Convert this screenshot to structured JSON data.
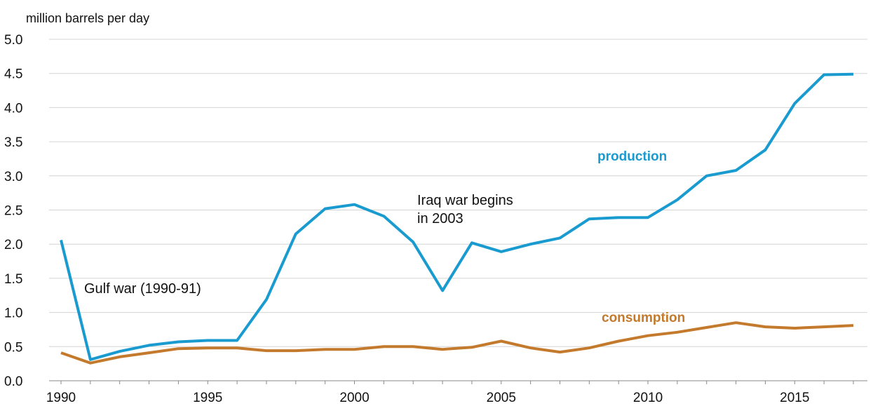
{
  "chart_data": {
    "type": "line",
    "ylabel": "million barrels per day",
    "xlim": [
      1990,
      2017
    ],
    "ylim": [
      0,
      5
    ],
    "grid": true,
    "y_ticks": [
      "0.0",
      "0.5",
      "1.0",
      "1.5",
      "2.0",
      "2.5",
      "3.0",
      "3.5",
      "4.0",
      "4.5",
      "5.0"
    ],
    "x_ticks": [
      1990,
      1995,
      2000,
      2005,
      2010,
      2015
    ],
    "x": [
      1990,
      1991,
      1992,
      1993,
      1994,
      1995,
      1996,
      1997,
      1998,
      1999,
      2000,
      2001,
      2002,
      2003,
      2004,
      2005,
      2006,
      2007,
      2008,
      2009,
      2010,
      2011,
      2012,
      2013,
      2014,
      2015,
      2016,
      2017
    ],
    "series": [
      {
        "name": "production",
        "color": "#1a9bd0",
        "values": [
          2.06,
          0.31,
          0.43,
          0.52,
          0.57,
          0.59,
          0.59,
          1.19,
          2.15,
          2.52,
          2.58,
          2.41,
          2.03,
          1.32,
          2.02,
          1.89,
          2.0,
          2.09,
          2.37,
          2.39,
          2.39,
          2.65,
          3.0,
          3.08,
          3.38,
          4.06,
          4.48,
          4.49
        ]
      },
      {
        "name": "consumption",
        "color": "#c47a2c",
        "values": [
          0.41,
          0.26,
          0.35,
          0.41,
          0.47,
          0.48,
          0.48,
          0.44,
          0.44,
          0.46,
          0.46,
          0.5,
          0.5,
          0.46,
          0.49,
          0.58,
          0.48,
          0.42,
          0.48,
          0.58,
          0.66,
          0.71,
          0.78,
          0.85,
          0.79,
          0.77,
          0.79,
          0.81
        ]
      }
    ],
    "annotations": [
      {
        "text": "Gulf war (1990-91)"
      },
      {
        "text": "Iraq war begins",
        "text2": "in 2003"
      }
    ]
  }
}
